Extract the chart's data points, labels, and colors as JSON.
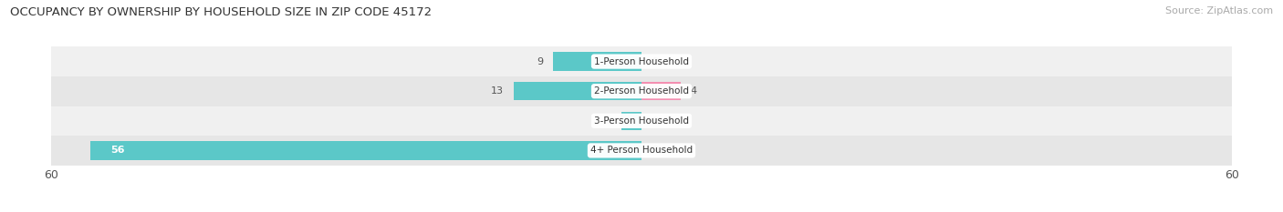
{
  "title": "OCCUPANCY BY OWNERSHIP BY HOUSEHOLD SIZE IN ZIP CODE 45172",
  "source": "Source: ZipAtlas.com",
  "categories": [
    "1-Person Household",
    "2-Person Household",
    "3-Person Household",
    "4+ Person Household"
  ],
  "owner_values": [
    9,
    13,
    2,
    56
  ],
  "renter_values": [
    0,
    4,
    0,
    0
  ],
  "owner_color": "#5bc8c8",
  "renter_color": "#f48fb1",
  "row_bg_colors": [
    "#f0f0f0",
    "#e6e6e6",
    "#f0f0f0",
    "#e6e6e6"
  ],
  "xlim": 60,
  "label_color": "#555555",
  "title_color": "#333333",
  "bar_height": 0.62,
  "figsize": [
    14.06,
    2.33
  ],
  "dpi": 100
}
